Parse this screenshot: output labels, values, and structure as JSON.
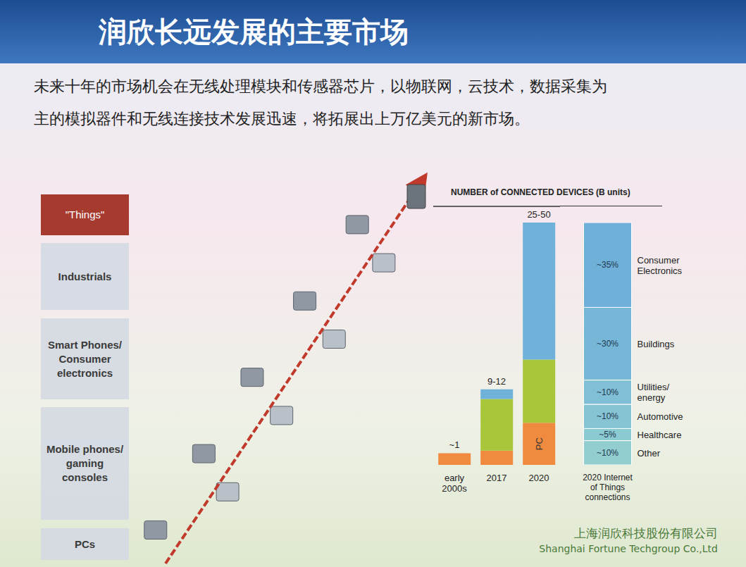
{
  "header": {
    "title": "润欣长远发展的主要市场"
  },
  "body": "未来十年的市场机会在无线处理模块和传感器芯片，以物联网，云技术，数据采集为主的模拟器件和无线连接技术发展迅速，将拓展出上万亿美元的新市场。",
  "staircase": [
    "\"Things\"",
    "Industrials",
    "Smart Phones/ Consumer electronics",
    "Mobile phones/ gaming consoles",
    "PCs"
  ],
  "footer": {
    "company_cn": "上海润欣科技股份有限公司",
    "company_en": "Shanghai Fortune Techgroup Co.,Ltd"
  },
  "chart_data": [
    {
      "type": "bar",
      "title": "NUMBER of CONNECTED DEVICES (B units)",
      "stacked": true,
      "categories": [
        "early 2000s",
        "2017",
        "2020"
      ],
      "series": [
        {
          "name": "PC",
          "color": "#ef8a3e",
          "values": [
            1.8,
            2.2,
            6.5
          ]
        },
        {
          "name": "Mobile",
          "color": "#a9c63a",
          "values": [
            0,
            8,
            9.8
          ]
        },
        {
          "name": "\"Things\"",
          "color": "#6fb1d8",
          "values": [
            0,
            1.5,
            21.2
          ]
        }
      ],
      "annotations": [
        "~1",
        "9-12",
        "25-50"
      ],
      "ylim": [
        0,
        40
      ],
      "tick_labels": "x",
      "grid": false
    },
    {
      "type": "bar",
      "stacked": true,
      "categories": [
        "2020 Internet of Things connections"
      ],
      "series": [
        {
          "name": "Other",
          "color": "#92cdd0",
          "values": [
            10
          ],
          "value_labels": [
            "~10%"
          ]
        },
        {
          "name": "Healthcare",
          "color": "#8ccad2",
          "values": [
            5
          ],
          "value_labels": [
            "~5%"
          ]
        },
        {
          "name": "Automotive",
          "color": "#86c4d4",
          "values": [
            10
          ],
          "value_labels": [
            "~10%"
          ]
        },
        {
          "name": "Utilities/ energy",
          "color": "#80bfd6",
          "values": [
            10
          ],
          "value_labels": [
            "~10%"
          ]
        },
        {
          "name": "Buildings",
          "color": "#76b7d8",
          "values": [
            30
          ],
          "value_labels": [
            "~30%"
          ]
        },
        {
          "name": "Consumer Electronics",
          "color": "#6eb0d8",
          "values": [
            35
          ],
          "value_labels": [
            "~35%"
          ]
        }
      ],
      "ylim": [
        0,
        100
      ],
      "tick_labels": "x",
      "grid": false,
      "data_labels": true
    }
  ]
}
